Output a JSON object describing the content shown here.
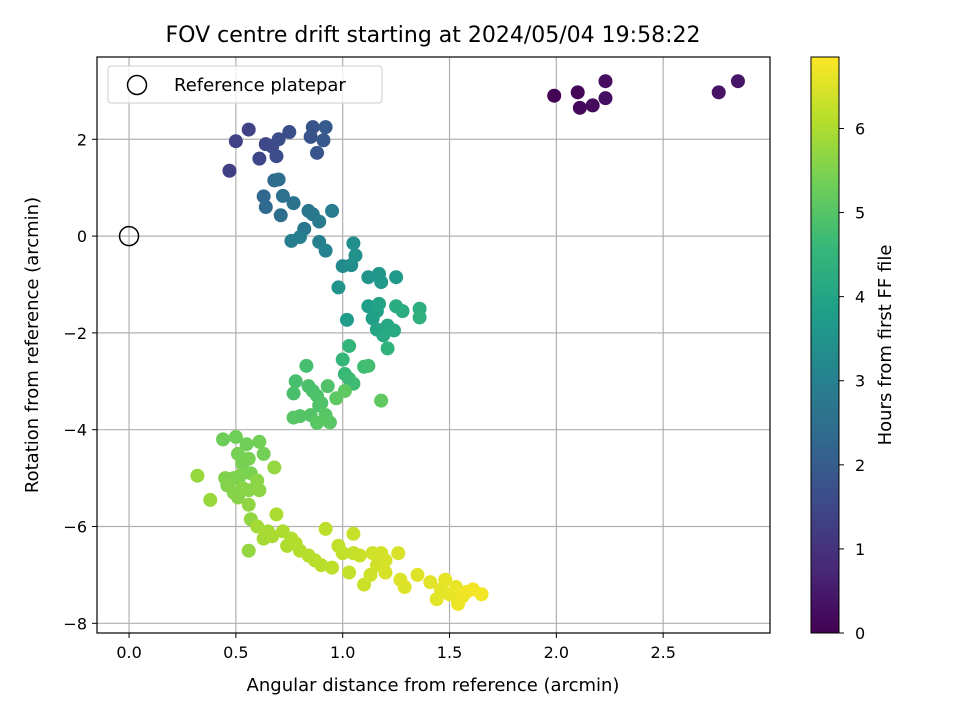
{
  "chart_data": {
    "type": "scatter",
    "title": "FOV centre drift starting at 2024/05/04 19:58:22",
    "xlabel": "Angular distance from reference (arcmin)",
    "ylabel": "Rotation from reference (arcmin)",
    "xlim": [
      -0.15,
      3.0
    ],
    "ylim": [
      -8.2,
      3.7
    ],
    "xticks": [
      0.0,
      0.5,
      1.0,
      1.5,
      2.0,
      2.5
    ],
    "xtick_labels": [
      "0.0",
      "0.5",
      "1.0",
      "1.5",
      "2.0",
      "2.5"
    ],
    "yticks": [
      -8,
      -6,
      -4,
      -2,
      0,
      2
    ],
    "ytick_labels": [
      "−8",
      "−6",
      "−4",
      "−2",
      "0",
      "2"
    ],
    "grid": true,
    "legend_position": "top-left",
    "reference": {
      "name": "Reference platepar",
      "x": 0.0,
      "y": 0.0
    },
    "colorbar": {
      "label": "Hours from first FF file",
      "colormap": "viridis",
      "range": [
        0,
        6.85
      ],
      "ticks": [
        0,
        1,
        2,
        3,
        4,
        5,
        6
      ],
      "tick_labels": [
        "0",
        "1",
        "2",
        "3",
        "4",
        "5",
        "6"
      ]
    },
    "points": [
      [
        1.99,
        2.9,
        0.05
      ],
      [
        2.1,
        2.97,
        0.1
      ],
      [
        2.11,
        2.65,
        0.15
      ],
      [
        2.17,
        2.7,
        0.2
      ],
      [
        2.23,
        3.2,
        0.25
      ],
      [
        2.23,
        2.85,
        0.3
      ],
      [
        2.76,
        2.97,
        0.35
      ],
      [
        2.85,
        3.2,
        0.4
      ],
      [
        0.47,
        1.35,
        1.3
      ],
      [
        0.5,
        1.96,
        1.35
      ],
      [
        0.56,
        2.2,
        1.4
      ],
      [
        0.61,
        1.6,
        1.45
      ],
      [
        0.64,
        1.9,
        1.5
      ],
      [
        0.67,
        1.85,
        1.55
      ],
      [
        0.69,
        1.65,
        1.6
      ],
      [
        0.7,
        2.0,
        1.65
      ],
      [
        0.75,
        2.15,
        1.7
      ],
      [
        0.85,
        2.05,
        1.75
      ],
      [
        0.86,
        2.25,
        1.8
      ],
      [
        0.88,
        1.72,
        1.85
      ],
      [
        0.91,
        1.98,
        1.9
      ],
      [
        0.92,
        2.25,
        1.95
      ],
      [
        0.63,
        0.82,
        2.3
      ],
      [
        0.64,
        0.6,
        2.35
      ],
      [
        0.68,
        1.15,
        2.4
      ],
      [
        0.7,
        1.17,
        2.45
      ],
      [
        0.71,
        0.43,
        2.5
      ],
      [
        0.72,
        0.83,
        2.55
      ],
      [
        0.77,
        0.68,
        2.6
      ],
      [
        0.82,
        0.15,
        2.65
      ],
      [
        0.84,
        0.52,
        2.7
      ],
      [
        0.86,
        0.45,
        2.75
      ],
      [
        0.89,
        0.3,
        2.8
      ],
      [
        0.95,
        0.52,
        2.85
      ],
      [
        0.76,
        -0.1,
        2.9
      ],
      [
        0.8,
        -0.02,
        2.95
      ],
      [
        0.89,
        -0.12,
        3.0
      ],
      [
        0.92,
        -0.3,
        3.05
      ],
      [
        1.0,
        -0.62,
        3.3
      ],
      [
        1.04,
        -0.6,
        3.35
      ],
      [
        1.05,
        -0.15,
        3.4
      ],
      [
        1.06,
        -0.4,
        3.45
      ],
      [
        0.98,
        -1.06,
        3.5
      ],
      [
        1.12,
        -0.85,
        3.55
      ],
      [
        1.17,
        -0.78,
        3.6
      ],
      [
        1.18,
        -0.95,
        3.65
      ],
      [
        1.25,
        -0.85,
        3.7
      ],
      [
        1.02,
        -1.73,
        3.75
      ],
      [
        1.12,
        -1.45,
        3.8
      ],
      [
        1.14,
        -1.7,
        3.85
      ],
      [
        1.16,
        -1.55,
        3.9
      ],
      [
        1.17,
        -1.4,
        3.95
      ],
      [
        1.16,
        -1.93,
        4.0
      ],
      [
        1.21,
        -1.85,
        4.05
      ],
      [
        1.19,
        -2.05,
        4.1
      ],
      [
        1.24,
        -1.95,
        4.15
      ],
      [
        1.25,
        -1.45,
        4.2
      ],
      [
        1.28,
        -1.55,
        4.25
      ],
      [
        1.36,
        -1.5,
        4.3
      ],
      [
        1.36,
        -1.68,
        4.35
      ],
      [
        1.21,
        -2.32,
        4.4
      ],
      [
        1.03,
        -2.27,
        4.5
      ],
      [
        1.0,
        -2.55,
        4.55
      ],
      [
        1.01,
        -2.85,
        4.6
      ],
      [
        1.03,
        -2.95,
        4.65
      ],
      [
        1.05,
        -3.05,
        4.7
      ],
      [
        1.1,
        -2.7,
        4.72
      ],
      [
        1.12,
        -2.68,
        4.75
      ],
      [
        0.83,
        -2.68,
        4.8
      ],
      [
        0.78,
        -3.0,
        4.82
      ],
      [
        0.77,
        -3.25,
        4.84
      ],
      [
        0.84,
        -3.1,
        4.86
      ],
      [
        0.86,
        -3.2,
        4.88
      ],
      [
        0.88,
        -3.3,
        4.9
      ],
      [
        0.89,
        -3.5,
        4.92
      ],
      [
        0.93,
        -3.1,
        4.94
      ],
      [
        0.9,
        -3.45,
        4.96
      ],
      [
        0.85,
        -3.7,
        4.98
      ],
      [
        0.8,
        -3.72,
        5.0
      ],
      [
        0.77,
        -3.75,
        5.02
      ],
      [
        0.92,
        -3.7,
        5.04
      ],
      [
        0.94,
        -3.85,
        5.06
      ],
      [
        0.88,
        -3.86,
        5.08
      ],
      [
        0.97,
        -3.35,
        5.1
      ],
      [
        1.01,
        -3.2,
        5.12
      ],
      [
        1.18,
        -3.4,
        5.14
      ],
      [
        0.44,
        -4.2,
        5.3
      ],
      [
        0.5,
        -4.15,
        5.32
      ],
      [
        0.55,
        -4.3,
        5.34
      ],
      [
        0.61,
        -4.25,
        5.36
      ],
      [
        0.63,
        -4.5,
        5.38
      ],
      [
        0.51,
        -4.5,
        5.4
      ],
      [
        0.53,
        -4.7,
        5.42
      ],
      [
        0.56,
        -4.6,
        5.44
      ],
      [
        0.57,
        -4.9,
        5.46
      ],
      [
        0.52,
        -4.95,
        5.48
      ],
      [
        0.49,
        -5.0,
        5.5
      ],
      [
        0.45,
        -5.0,
        5.52
      ],
      [
        0.46,
        -5.15,
        5.54
      ],
      [
        0.49,
        -5.3,
        5.56
      ],
      [
        0.51,
        -5.4,
        5.58
      ],
      [
        0.53,
        -5.2,
        5.6
      ],
      [
        0.56,
        -5.25,
        5.62
      ],
      [
        0.6,
        -5.05,
        5.64
      ],
      [
        0.61,
        -5.25,
        5.66
      ],
      [
        0.56,
        -5.55,
        5.68
      ],
      [
        0.57,
        -5.85,
        5.7
      ],
      [
        0.56,
        -6.5,
        5.72
      ],
      [
        0.68,
        -4.78,
        5.74
      ],
      [
        0.32,
        -4.95,
        5.76
      ],
      [
        0.38,
        -5.45,
        5.78
      ],
      [
        0.6,
        -6.0,
        5.9
      ],
      [
        0.63,
        -6.25,
        5.92
      ],
      [
        0.65,
        -6.1,
        5.94
      ],
      [
        0.67,
        -6.2,
        5.96
      ],
      [
        0.69,
        -5.75,
        5.98
      ],
      [
        0.72,
        -6.1,
        6.0
      ],
      [
        0.74,
        -6.4,
        6.02
      ],
      [
        0.76,
        -6.25,
        6.04
      ],
      [
        0.78,
        -6.35,
        6.06
      ],
      [
        0.8,
        -6.5,
        6.08
      ],
      [
        0.84,
        -6.6,
        6.1
      ],
      [
        0.87,
        -6.7,
        6.12
      ],
      [
        0.9,
        -6.8,
        6.14
      ],
      [
        0.92,
        -6.05,
        6.16
      ],
      [
        0.95,
        -6.85,
        6.18
      ],
      [
        0.98,
        -6.4,
        6.2
      ],
      [
        1.0,
        -6.55,
        6.22
      ],
      [
        1.03,
        -6.95,
        6.24
      ],
      [
        1.05,
        -6.55,
        6.26
      ],
      [
        1.05,
        -6.15,
        6.28
      ],
      [
        1.08,
        -6.6,
        6.3
      ],
      [
        1.1,
        -7.2,
        6.32
      ],
      [
        1.13,
        -7.0,
        6.34
      ],
      [
        1.14,
        -6.55,
        6.36
      ],
      [
        1.16,
        -6.8,
        6.38
      ],
      [
        1.18,
        -6.55,
        6.4
      ],
      [
        1.2,
        -6.7,
        6.42
      ],
      [
        1.2,
        -6.95,
        6.44
      ],
      [
        1.26,
        -6.55,
        6.46
      ],
      [
        1.27,
        -7.1,
        6.48
      ],
      [
        1.29,
        -7.25,
        6.5
      ],
      [
        1.35,
        -7.0,
        6.52
      ],
      [
        1.41,
        -7.15,
        6.54
      ],
      [
        1.44,
        -7.5,
        6.56
      ],
      [
        1.46,
        -7.3,
        6.58
      ],
      [
        1.48,
        -7.1,
        6.6
      ],
      [
        1.5,
        -7.4,
        6.62
      ],
      [
        1.53,
        -7.25,
        6.64
      ],
      [
        1.54,
        -7.6,
        6.66
      ],
      [
        1.56,
        -7.45,
        6.68
      ],
      [
        1.58,
        -7.35,
        6.7
      ],
      [
        1.61,
        -7.3,
        6.72
      ],
      [
        1.65,
        -7.4,
        6.74
      ]
    ]
  }
}
